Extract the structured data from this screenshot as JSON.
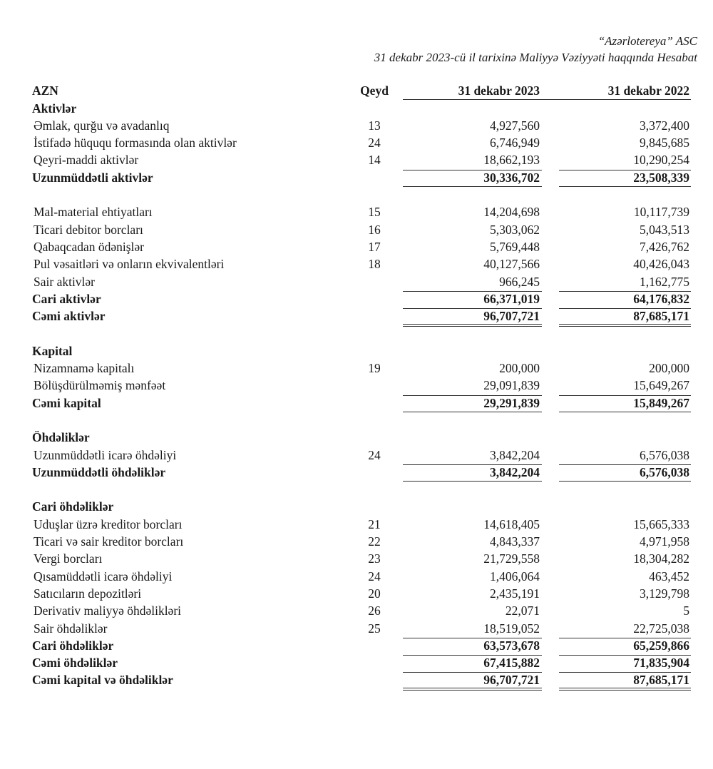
{
  "header": {
    "company": "“Azərlotereya” ASC",
    "subtitle": "31 dekabr 2023-cü il tarixinə Maliyyə Vəziyyəti haqqında Hesabat"
  },
  "columns": {
    "currency": "AZN",
    "note": "Qeyd",
    "current": "31 dekabr 2023",
    "prior": "31 dekabr 2022"
  },
  "rows": [
    {
      "type": "heading",
      "label": "Aktivlər"
    },
    {
      "type": "item",
      "label": "Əmlak, qurğu və avadanlıq",
      "note": "13",
      "v2023": "4,927,560",
      "v2022": "3,372,400"
    },
    {
      "type": "item",
      "label": "İstifadə hüququ formasında olan aktivlər",
      "note": "24",
      "v2023": "6,746,949",
      "v2022": "9,845,685"
    },
    {
      "type": "item",
      "label": "Qeyri-maddi aktivlər",
      "note": "14",
      "v2023": "18,662,193",
      "v2022": "10,290,254"
    },
    {
      "type": "total",
      "label": "Uzunmüddətli aktivlər",
      "v2023": "30,336,702",
      "v2022": "23,508,339",
      "under": "single"
    },
    {
      "type": "blank"
    },
    {
      "type": "item",
      "label": "Mal-material ehtiyatları",
      "note": "15",
      "v2023": "14,204,698",
      "v2022": "10,117,739"
    },
    {
      "type": "item",
      "label": "Ticari debitor borcları",
      "note": "16",
      "v2023": "5,303,062",
      "v2022": "5,043,513"
    },
    {
      "type": "item",
      "label": "Qabaqcadan ödənişlər",
      "note": "17",
      "v2023": "5,769,448",
      "v2022": "7,426,762"
    },
    {
      "type": "item",
      "label": "Pul vəsaitləri və onların ekvivalentləri",
      "note": "18",
      "v2023": "40,127,566",
      "v2022": "40,426,043"
    },
    {
      "type": "item",
      "label": "Sair aktivlər",
      "v2023": "966,245",
      "v2022": "1,162,775"
    },
    {
      "type": "total",
      "label": "Cari aktivlər",
      "v2023": "66,371,019",
      "v2022": "64,176,832"
    },
    {
      "type": "total",
      "label": "Cəmi aktivlər",
      "v2023": "96,707,721",
      "v2022": "87,685,171",
      "under": "double"
    },
    {
      "type": "blank"
    },
    {
      "type": "heading",
      "label": "Kapital"
    },
    {
      "type": "item",
      "label": "Nizamnamə kapitalı",
      "note": "19",
      "v2023": "200,000",
      "v2022": "200,000"
    },
    {
      "type": "item",
      "label": "Bölüşdürülməmiş mənfəət",
      "v2023": "29,091,839",
      "v2022": "15,649,267"
    },
    {
      "type": "total",
      "label": "Cəmi kapital",
      "v2023": "29,291,839",
      "v2022": "15,849,267",
      "under": "single"
    },
    {
      "type": "blank"
    },
    {
      "type": "heading",
      "label": "Öhdəliklər"
    },
    {
      "type": "item",
      "label": "Uzunmüddətli icarə öhdəliyi",
      "note": "24",
      "v2023": "3,842,204",
      "v2022": "6,576,038"
    },
    {
      "type": "total",
      "label": "Uzunmüddətli öhdəliklər",
      "v2023": "3,842,204",
      "v2022": "6,576,038",
      "under": "single"
    },
    {
      "type": "blank"
    },
    {
      "type": "heading",
      "label": "Cari öhdəliklər"
    },
    {
      "type": "item",
      "label": "Uduşlar üzrə kreditor borcları",
      "note": "21",
      "v2023": "14,618,405",
      "v2022": "15,665,333"
    },
    {
      "type": "item",
      "label": "Ticari və sair kreditor borcları",
      "note": "22",
      "v2023": "4,843,337",
      "v2022": "4,971,958"
    },
    {
      "type": "item",
      "label": "Vergi borcları",
      "note": "23",
      "v2023": "21,729,558",
      "v2022": "18,304,282"
    },
    {
      "type": "item",
      "label": "Qısamüddətli icarə öhdəliyi",
      "note": "24",
      "v2023": "1,406,064",
      "v2022": "463,452"
    },
    {
      "type": "item",
      "label": "Satıcıların depozitləri",
      "note": "20",
      "v2023": "2,435,191",
      "v2022": "3,129,798"
    },
    {
      "type": "item",
      "label": "Derivativ maliyyə öhdəlikləri",
      "note": "26",
      "v2023": "22,071",
      "v2022": "5"
    },
    {
      "type": "item",
      "label": "Sair öhdəliklər",
      "note": "25",
      "v2023": "18,519,052",
      "v2022": "22,725,038"
    },
    {
      "type": "total",
      "label": "Cari öhdəliklər",
      "v2023": "63,573,678",
      "v2022": "65,259,866"
    },
    {
      "type": "total",
      "label": "Cəmi öhdəliklər",
      "v2023": "67,415,882",
      "v2022": "71,835,904"
    },
    {
      "type": "total",
      "label": "Cəmi kapital və öhdəliklər",
      "v2023": "96,707,721",
      "v2022": "87,685,171",
      "under": "double"
    }
  ]
}
